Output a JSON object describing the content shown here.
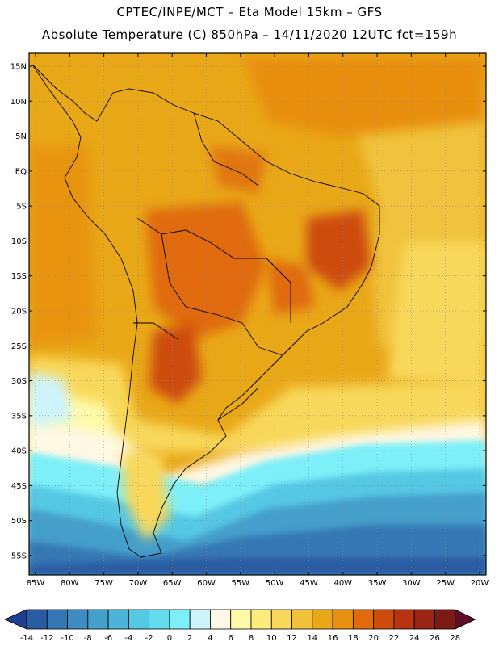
{
  "title_line1": "CPTEC/INPE/MCT –   Eta Model 15km – GFS",
  "title_line2": "Absolute Temperature (C) 850hPa – 14/11/2020 12UTC fct=159h",
  "lat_labels": [
    "15N",
    "10N",
    "5N",
    "EQ",
    "5S",
    "10S",
    "15S",
    "20S",
    "25S",
    "30S",
    "35S",
    "40S",
    "45S",
    "50S",
    "55S"
  ],
  "lat_values": [
    15,
    10,
    5,
    0,
    -5,
    -10,
    -15,
    -20,
    -25,
    -30,
    -35,
    -40,
    -45,
    -50,
    -55
  ],
  "lon_labels": [
    "85W",
    "80W",
    "75W",
    "70W",
    "65W",
    "60W",
    "55W",
    "50W",
    "45W",
    "40W",
    "35W",
    "30W",
    "25W",
    "20W"
  ],
  "lon_values": [
    -85,
    -80,
    -75,
    -70,
    -65,
    -60,
    -55,
    -50,
    -45,
    -40,
    -35,
    -30,
    -25,
    -20
  ],
  "colorbar": {
    "labels": [
      "-14",
      "-12",
      "-10",
      "-8",
      "-6",
      "-4",
      "-2",
      "0",
      "2",
      "4",
      "6",
      "8",
      "10",
      "12",
      "14",
      "16",
      "18",
      "20",
      "22",
      "24",
      "26",
      "28"
    ],
    "colors": [
      "#1e3f8f",
      "#2a5ca3",
      "#3477b4",
      "#3e8cc2",
      "#459fcb",
      "#4bb4d8",
      "#55c8e4",
      "#62dcee",
      "#7deff8",
      "#cdf4fb",
      "#fff8e4",
      "#fffaa8",
      "#fdeb7c",
      "#f8d85a",
      "#f0c23c",
      "#e9a818",
      "#e8900f",
      "#e06a0c",
      "#cd4c0c",
      "#b83410",
      "#9a2312",
      "#7a1a14",
      "#5e0d24"
    ]
  }
}
